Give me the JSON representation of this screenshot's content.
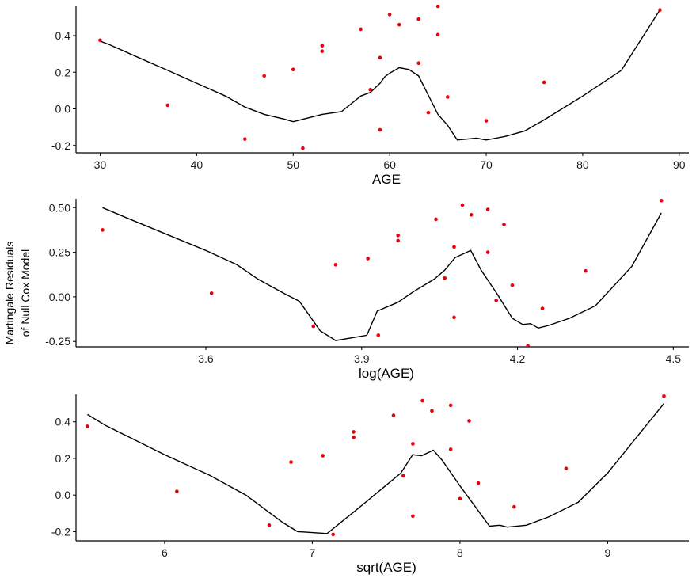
{
  "chart_data": {
    "type": "scatter",
    "ylabel_lines": [
      "Martingale Residuals",
      "of Null Cox Model"
    ],
    "colors": {
      "point": "#e8000b",
      "line": "#000000"
    },
    "panels": [
      {
        "name": "age",
        "xlabel": "AGE",
        "xlim": [
          27.5,
          91
        ],
        "ylim": [
          -0.24,
          0.56
        ],
        "xticks": [
          30,
          40,
          50,
          60,
          70,
          80,
          90
        ],
        "xtick_labels": [
          "30",
          "40",
          "50",
          "60",
          "70",
          "80",
          "90"
        ],
        "yticks": [
          -0.2,
          0.0,
          0.2,
          0.4
        ],
        "ytick_labels": [
          "-0.2",
          "0.0",
          "0.2",
          "0.4"
        ],
        "points": [
          [
            30,
            0.375
          ],
          [
            37,
            0.02
          ],
          [
            45,
            -0.165
          ],
          [
            47,
            0.18
          ],
          [
            50,
            0.215
          ],
          [
            51,
            -0.215
          ],
          [
            53,
            0.345
          ],
          [
            53,
            0.315
          ],
          [
            57,
            0.435
          ],
          [
            58,
            0.105
          ],
          [
            59,
            0.28
          ],
          [
            59,
            -0.115
          ],
          [
            60,
            0.515
          ],
          [
            61,
            0.46
          ],
          [
            63,
            0.49
          ],
          [
            63,
            0.25
          ],
          [
            64,
            -0.02
          ],
          [
            65,
            0.56
          ],
          [
            65,
            0.405
          ],
          [
            66,
            0.065
          ],
          [
            70,
            -0.065
          ],
          [
            76,
            0.145
          ],
          [
            88,
            0.54
          ]
        ],
        "line": [
          [
            30,
            0.37
          ],
          [
            31,
            0.35
          ],
          [
            34,
            0.28
          ],
          [
            37,
            0.21
          ],
          [
            40,
            0.14
          ],
          [
            43,
            0.07
          ],
          [
            45,
            0.01
          ],
          [
            47,
            -0.03
          ],
          [
            49,
            -0.055
          ],
          [
            50,
            -0.07
          ],
          [
            53,
            -0.03
          ],
          [
            55,
            -0.015
          ],
          [
            57,
            0.07
          ],
          [
            58,
            0.09
          ],
          [
            59,
            0.14
          ],
          [
            59.5,
            0.175
          ],
          [
            60,
            0.195
          ],
          [
            61,
            0.225
          ],
          [
            62,
            0.215
          ],
          [
            63,
            0.18
          ],
          [
            64,
            0.075
          ],
          [
            65,
            -0.03
          ],
          [
            66,
            -0.09
          ],
          [
            67,
            -0.17
          ],
          [
            69,
            -0.16
          ],
          [
            70,
            -0.17
          ],
          [
            72,
            -0.15
          ],
          [
            74,
            -0.12
          ],
          [
            76,
            -0.06
          ],
          [
            80,
            0.07
          ],
          [
            84,
            0.21
          ],
          [
            88,
            0.54
          ]
        ]
      },
      {
        "name": "log-age",
        "xlabel": "log(AGE)",
        "xlim": [
          3.35,
          4.53
        ],
        "ylim": [
          -0.28,
          0.55
        ],
        "xticks": [
          3.6,
          3.9,
          4.2,
          4.5
        ],
        "xtick_labels": [
          "3.6",
          "3.9",
          "4.2",
          "4.5"
        ],
        "yticks": [
          -0.25,
          0.0,
          0.25,
          0.5
        ],
        "ytick_labels": [
          "-0.25",
          "0.00",
          "0.25",
          "0.50"
        ],
        "points": [
          [
            3.401,
            0.375
          ],
          [
            3.611,
            0.02
          ],
          [
            3.807,
            -0.165
          ],
          [
            3.85,
            0.18
          ],
          [
            3.912,
            0.215
          ],
          [
            3.932,
            -0.215
          ],
          [
            3.97,
            0.345
          ],
          [
            3.97,
            0.315
          ],
          [
            4.043,
            0.435
          ],
          [
            4.06,
            0.105
          ],
          [
            4.078,
            0.28
          ],
          [
            4.078,
            -0.115
          ],
          [
            4.094,
            0.515
          ],
          [
            4.111,
            0.46
          ],
          [
            4.143,
            0.49
          ],
          [
            4.143,
            0.25
          ],
          [
            4.159,
            -0.02
          ],
          [
            4.174,
            0.405
          ],
          [
            4.19,
            0.065
          ],
          [
            4.22,
            -0.275
          ],
          [
            4.248,
            -0.065
          ],
          [
            4.331,
            0.145
          ],
          [
            4.477,
            0.54
          ]
        ],
        "line": [
          [
            3.401,
            0.5
          ],
          [
            3.45,
            0.44
          ],
          [
            3.5,
            0.38
          ],
          [
            3.55,
            0.32
          ],
          [
            3.6,
            0.26
          ],
          [
            3.66,
            0.18
          ],
          [
            3.7,
            0.1
          ],
          [
            3.75,
            0.02
          ],
          [
            3.78,
            -0.025
          ],
          [
            3.82,
            -0.19
          ],
          [
            3.85,
            -0.245
          ],
          [
            3.91,
            -0.215
          ],
          [
            3.93,
            -0.08
          ],
          [
            3.97,
            -0.03
          ],
          [
            4.0,
            0.03
          ],
          [
            4.04,
            0.1
          ],
          [
            4.06,
            0.15
          ],
          [
            4.08,
            0.22
          ],
          [
            4.11,
            0.26
          ],
          [
            4.13,
            0.15
          ],
          [
            4.16,
            0.02
          ],
          [
            4.19,
            -0.12
          ],
          [
            4.21,
            -0.155
          ],
          [
            4.225,
            -0.15
          ],
          [
            4.24,
            -0.175
          ],
          [
            4.26,
            -0.16
          ],
          [
            4.3,
            -0.12
          ],
          [
            4.35,
            -0.05
          ],
          [
            4.42,
            0.17
          ],
          [
            4.477,
            0.47
          ]
        ]
      },
      {
        "name": "sqrt-age",
        "xlabel": "sqrt(AGE)",
        "xlim": [
          5.4,
          9.55
        ],
        "ylim": [
          -0.25,
          0.55
        ],
        "xticks": [
          6,
          7,
          8,
          9
        ],
        "xtick_labels": [
          "6",
          "7",
          "8",
          "9"
        ],
        "yticks": [
          -0.2,
          0.0,
          0.2,
          0.4
        ],
        "ytick_labels": [
          "-0.2",
          "0.0",
          "0.2",
          "0.4"
        ],
        "points": [
          [
            5.477,
            0.375
          ],
          [
            6.083,
            0.02
          ],
          [
            6.708,
            -0.165
          ],
          [
            6.856,
            0.18
          ],
          [
            7.071,
            0.215
          ],
          [
            7.141,
            -0.215
          ],
          [
            7.28,
            0.345
          ],
          [
            7.28,
            0.315
          ],
          [
            7.55,
            0.435
          ],
          [
            7.616,
            0.105
          ],
          [
            7.681,
            0.28
          ],
          [
            7.681,
            -0.115
          ],
          [
            7.746,
            0.515
          ],
          [
            7.81,
            0.46
          ],
          [
            7.937,
            0.49
          ],
          [
            7.937,
            0.25
          ],
          [
            8.0,
            -0.02
          ],
          [
            8.062,
            0.405
          ],
          [
            8.124,
            0.065
          ],
          [
            8.367,
            -0.065
          ],
          [
            8.718,
            0.145
          ],
          [
            9.381,
            0.54
          ]
        ],
        "line": [
          [
            5.477,
            0.44
          ],
          [
            5.6,
            0.38
          ],
          [
            5.8,
            0.3
          ],
          [
            6.0,
            0.22
          ],
          [
            6.3,
            0.11
          ],
          [
            6.55,
            0.0
          ],
          [
            6.8,
            -0.15
          ],
          [
            6.9,
            -0.2
          ],
          [
            7.1,
            -0.21
          ],
          [
            7.3,
            -0.08
          ],
          [
            7.45,
            0.02
          ],
          [
            7.6,
            0.12
          ],
          [
            7.68,
            0.22
          ],
          [
            7.74,
            0.215
          ],
          [
            7.82,
            0.245
          ],
          [
            7.88,
            0.19
          ],
          [
            8.0,
            0.05
          ],
          [
            8.1,
            -0.06
          ],
          [
            8.2,
            -0.17
          ],
          [
            8.27,
            -0.165
          ],
          [
            8.32,
            -0.175
          ],
          [
            8.45,
            -0.165
          ],
          [
            8.6,
            -0.12
          ],
          [
            8.8,
            -0.04
          ],
          [
            9.0,
            0.12
          ],
          [
            9.381,
            0.5
          ]
        ]
      }
    ]
  }
}
